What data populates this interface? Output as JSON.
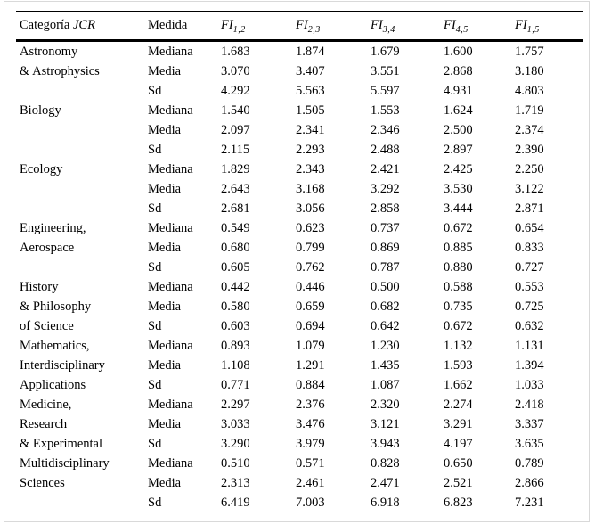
{
  "page": {
    "background": "#ffffff",
    "frame_color": "#d9d9d9",
    "rule_color": "#000000"
  },
  "table": {
    "header": {
      "category": {
        "text": "Categoría ",
        "italic": "JCR"
      },
      "measure": "Medida",
      "fi_columns": [
        {
          "base": "FI",
          "sub": "1,2"
        },
        {
          "base": "FI",
          "sub": "2,3"
        },
        {
          "base": "FI",
          "sub": "3,4"
        },
        {
          "base": "FI",
          "sub": "4,5"
        },
        {
          "base": "FI",
          "sub": "1,5"
        }
      ]
    },
    "groups": [
      {
        "name_lines": [
          "Astronomy",
          "& Astrophysics",
          ""
        ],
        "rows": [
          {
            "measure": "Mediana",
            "values": [
              "1.683",
              "1.874",
              "1.679",
              "1.600",
              "1.757"
            ]
          },
          {
            "measure": "Media",
            "values": [
              "3.070",
              "3.407",
              "3.551",
              "2.868",
              "3.180"
            ]
          },
          {
            "measure": "Sd",
            "values": [
              "4.292",
              "5.563",
              "5.597",
              "4.931",
              "4.803"
            ]
          }
        ]
      },
      {
        "name_lines": [
          "Biology",
          "",
          ""
        ],
        "rows": [
          {
            "measure": "Mediana",
            "values": [
              "1.540",
              "1.505",
              "1.553",
              "1.624",
              "1.719"
            ]
          },
          {
            "measure": "Media",
            "values": [
              "2.097",
              "2.341",
              "2.346",
              "2.500",
              "2.374"
            ]
          },
          {
            "measure": "Sd",
            "values": [
              "2.115",
              "2.293",
              "2.488",
              "2.897",
              "2.390"
            ]
          }
        ]
      },
      {
        "name_lines": [
          "Ecology",
          "",
          ""
        ],
        "rows": [
          {
            "measure": "Mediana",
            "values": [
              "1.829",
              "2.343",
              "2.421",
              "2.425",
              "2.250"
            ]
          },
          {
            "measure": "Media",
            "values": [
              "2.643",
              "3.168",
              "3.292",
              "3.530",
              "3.122"
            ]
          },
          {
            "measure": "Sd",
            "values": [
              "2.681",
              "3.056",
              "2.858",
              "3.444",
              "2.871"
            ]
          }
        ]
      },
      {
        "name_lines": [
          "Engineering,",
          "Aerospace",
          ""
        ],
        "rows": [
          {
            "measure": "Mediana",
            "values": [
              "0.549",
              "0.623",
              "0.737",
              "0.672",
              "0.654"
            ]
          },
          {
            "measure": "Media",
            "values": [
              "0.680",
              "0.799",
              "0.869",
              "0.885",
              "0.833"
            ]
          },
          {
            "measure": "Sd",
            "values": [
              "0.605",
              "0.762",
              "0.787",
              "0.880",
              "0.727"
            ]
          }
        ]
      },
      {
        "name_lines": [
          "History",
          "& Philosophy",
          "of Science"
        ],
        "rows": [
          {
            "measure": "Mediana",
            "values": [
              "0.442",
              "0.446",
              "0.500",
              "0.588",
              "0.553"
            ]
          },
          {
            "measure": "Media",
            "values": [
              "0.580",
              "0.659",
              "0.682",
              "0.735",
              "0.725"
            ]
          },
          {
            "measure": "Sd",
            "values": [
              "0.603",
              "0.694",
              "0.642",
              "0.672",
              "0.632"
            ]
          }
        ]
      },
      {
        "name_lines": [
          "Mathematics,",
          "Interdisciplinary",
          "Applications"
        ],
        "rows": [
          {
            "measure": "Mediana",
            "values": [
              "0.893",
              "1.079",
              "1.230",
              "1.132",
              "1.131"
            ]
          },
          {
            "measure": "Media",
            "values": [
              "1.108",
              "1.291",
              "1.435",
              "1.593",
              "1.394"
            ]
          },
          {
            "measure": "Sd",
            "values": [
              "0.771",
              "0.884",
              "1.087",
              "1.662",
              "1.033"
            ]
          }
        ]
      },
      {
        "name_lines": [
          "Medicine,",
          "Research",
          "& Experimental"
        ],
        "rows": [
          {
            "measure": "Mediana",
            "values": [
              "2.297",
              "2.376",
              "2.320",
              "2.274",
              "2.418"
            ]
          },
          {
            "measure": "Media",
            "values": [
              "3.033",
              "3.476",
              "3.121",
              "3.291",
              "3.337"
            ]
          },
          {
            "measure": "Sd",
            "values": [
              "3.290",
              "3.979",
              "3.943",
              "4.197",
              "3.635"
            ]
          }
        ]
      },
      {
        "name_lines": [
          "Multidisciplinary",
          "Sciences",
          ""
        ],
        "rows": [
          {
            "measure": "Mediana",
            "values": [
              "0.510",
              "0.571",
              "0.828",
              "0.650",
              "0.789"
            ]
          },
          {
            "measure": "Media",
            "values": [
              "2.313",
              "2.461",
              "2.471",
              "2.521",
              "2.866"
            ]
          },
          {
            "measure": "Sd",
            "values": [
              "6.419",
              "7.003",
              "6.918",
              "6.823",
              "7.231"
            ]
          }
        ]
      }
    ]
  }
}
